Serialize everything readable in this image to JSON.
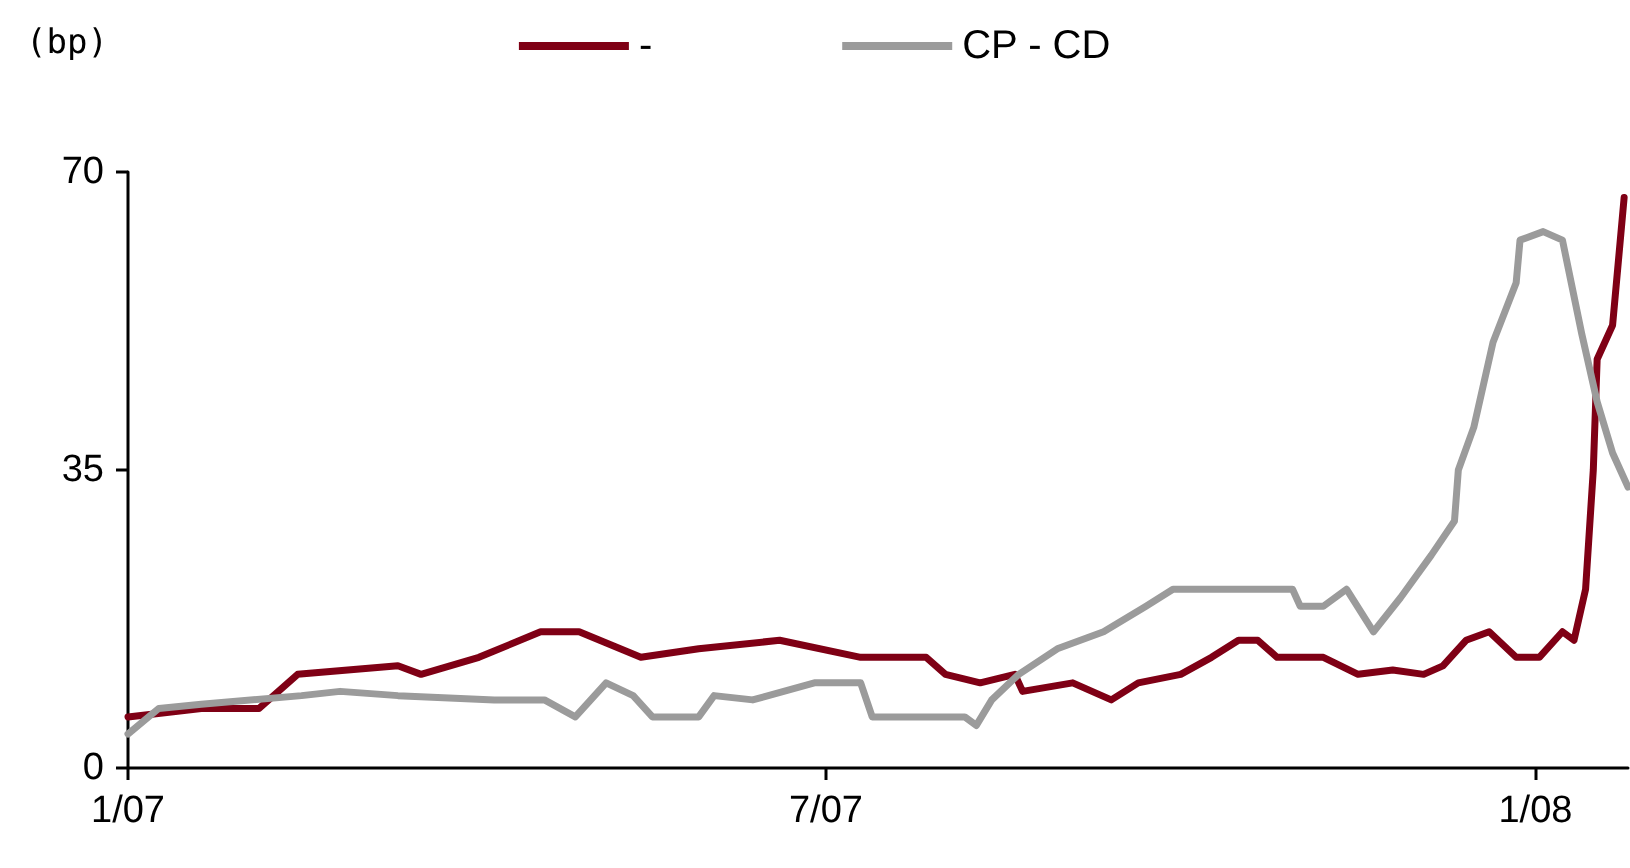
{
  "chart_data": {
    "type": "line",
    "ylabel": "(bp)",
    "legend": "top",
    "grid": false,
    "marker": "none",
    "line_style": "solid",
    "xlim": [
      "2007-01-01",
      "2008-01-25"
    ],
    "xticks": [
      {
        "value": "2007-01-01",
        "label": "1/07"
      },
      {
        "value": "2007-07-01",
        "label": "7/07"
      },
      {
        "value": "2008-01-01",
        "label": "1/08"
      }
    ],
    "ylim": [
      0,
      70
    ],
    "yticks": [
      0,
      35,
      70
    ],
    "series": [
      {
        "name": "-",
        "color": "#7f0015",
        "x": [
          "2007-01-01",
          "2007-01-20",
          "2007-02-04",
          "2007-02-14",
          "2007-03-12",
          "2007-03-18",
          "2007-04-02",
          "2007-04-18",
          "2007-04-28",
          "2007-05-14",
          "2007-05-29",
          "2007-06-19",
          "2007-07-10",
          "2007-07-27",
          "2007-08-01",
          "2007-08-10",
          "2007-08-19",
          "2007-08-21",
          "2007-09-03",
          "2007-09-13",
          "2007-09-20",
          "2007-10-01",
          "2007-10-09",
          "2007-10-16",
          "2007-10-21",
          "2007-10-26",
          "2007-11-07",
          "2007-11-16",
          "2007-11-25",
          "2007-12-03",
          "2007-12-08",
          "2007-12-14",
          "2007-12-20",
          "2007-12-27",
          "2008-01-02",
          "2008-01-08",
          "2008-01-11",
          "2008-01-14",
          "2008-01-16",
          "2008-01-17",
          "2008-01-21",
          "2008-01-24"
        ],
        "values": [
          6,
          7,
          7,
          11,
          12,
          11,
          13,
          16,
          16,
          13,
          14,
          15,
          13,
          13,
          11,
          10,
          11,
          9,
          10,
          8,
          10,
          11,
          13,
          15,
          15,
          13,
          13,
          11,
          11.5,
          11,
          12,
          15,
          16,
          13,
          13,
          16,
          15,
          21,
          35,
          48,
          52,
          67
        ]
      },
      {
        "name": "CP - CD",
        "color": "#9b9b9b",
        "x": [
          "2007-01-01",
          "2007-01-09",
          "2007-01-20",
          "2007-02-15",
          "2007-02-25",
          "2007-03-12",
          "2007-04-06",
          "2007-04-19",
          "2007-04-27",
          "2007-05-05",
          "2007-05-12",
          "2007-05-17",
          "2007-05-29",
          "2007-06-02",
          "2007-06-12",
          "2007-06-28",
          "2007-07-10",
          "2007-07-13",
          "2007-08-06",
          "2007-08-09",
          "2007-08-13",
          "2007-08-20",
          "2007-08-30",
          "2007-09-11",
          "2007-09-22",
          "2007-09-29",
          "2007-10-30",
          "2007-11-01",
          "2007-11-07",
          "2007-11-13",
          "2007-11-20",
          "2007-11-27",
          "2007-12-05",
          "2007-12-11",
          "2007-12-12",
          "2007-12-16",
          "2007-12-21",
          "2007-12-27",
          "2007-12-28",
          "2008-01-03",
          "2008-01-08",
          "2008-01-13",
          "2008-01-17",
          "2008-01-21",
          "2008-01-25"
        ],
        "values": [
          4,
          7,
          7.5,
          8.5,
          9,
          8.5,
          8,
          8,
          6,
          10,
          8.5,
          6,
          6,
          8.5,
          8,
          10,
          10,
          6,
          6,
          5,
          8,
          11,
          14,
          16,
          19,
          21,
          21,
          19,
          19,
          21,
          16,
          20,
          25,
          29,
          35,
          40,
          50,
          57,
          62,
          63,
          62,
          51,
          43,
          37,
          33
        ]
      }
    ]
  }
}
